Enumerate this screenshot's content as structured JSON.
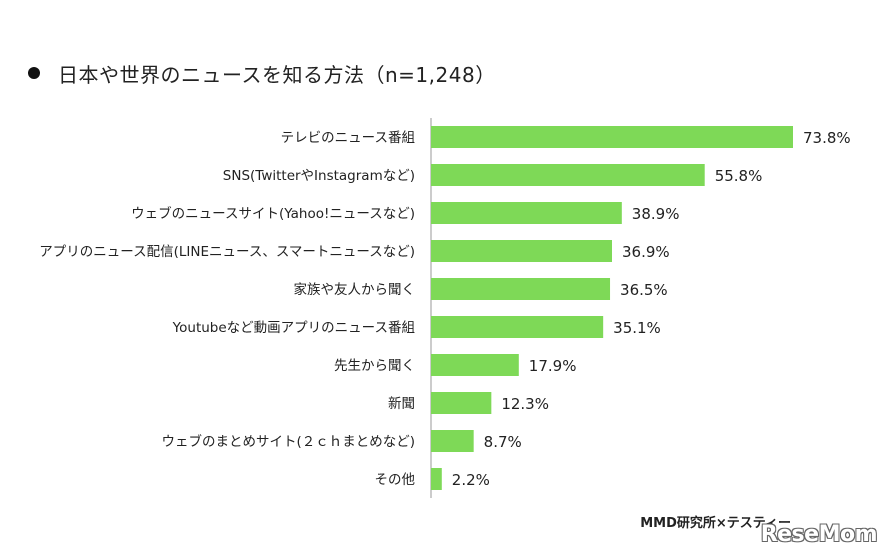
{
  "header": {
    "title": "日本や世界のニュースを知る方法（n=1,248）"
  },
  "chart_data": {
    "type": "bar",
    "orientation": "horizontal",
    "categories": [
      "テレビのニュース番組",
      "SNS(TwitterやInstagramなど)",
      "ウェブのニュースサイト(Yahoo!ニュースなど)",
      "アプリのニュース配信(LINEニュース、スマートニュースなど)",
      "家族や友人から聞く",
      "Youtubeなど動画アプリのニュース番組",
      "先生から聞く",
      "新聞",
      "ウェブのまとめサイト(２ｃｈまとめなど)",
      "その他"
    ],
    "values": [
      73.8,
      55.8,
      38.9,
      36.9,
      36.5,
      35.1,
      17.9,
      12.3,
      8.7,
      2.2
    ],
    "value_labels": [
      "73.8%",
      "55.8%",
      "38.9%",
      "36.9%",
      "36.5%",
      "35.1%",
      "17.9%",
      "12.3%",
      "8.7%",
      "2.2%"
    ],
    "unit": "%",
    "bar_color": "#7ed957",
    "axis_line_color": "#9a9a9a",
    "grid": false,
    "legend": "none"
  },
  "footer": {
    "source": "MMD研究所×テスティー",
    "watermark": "ReseMom"
  }
}
